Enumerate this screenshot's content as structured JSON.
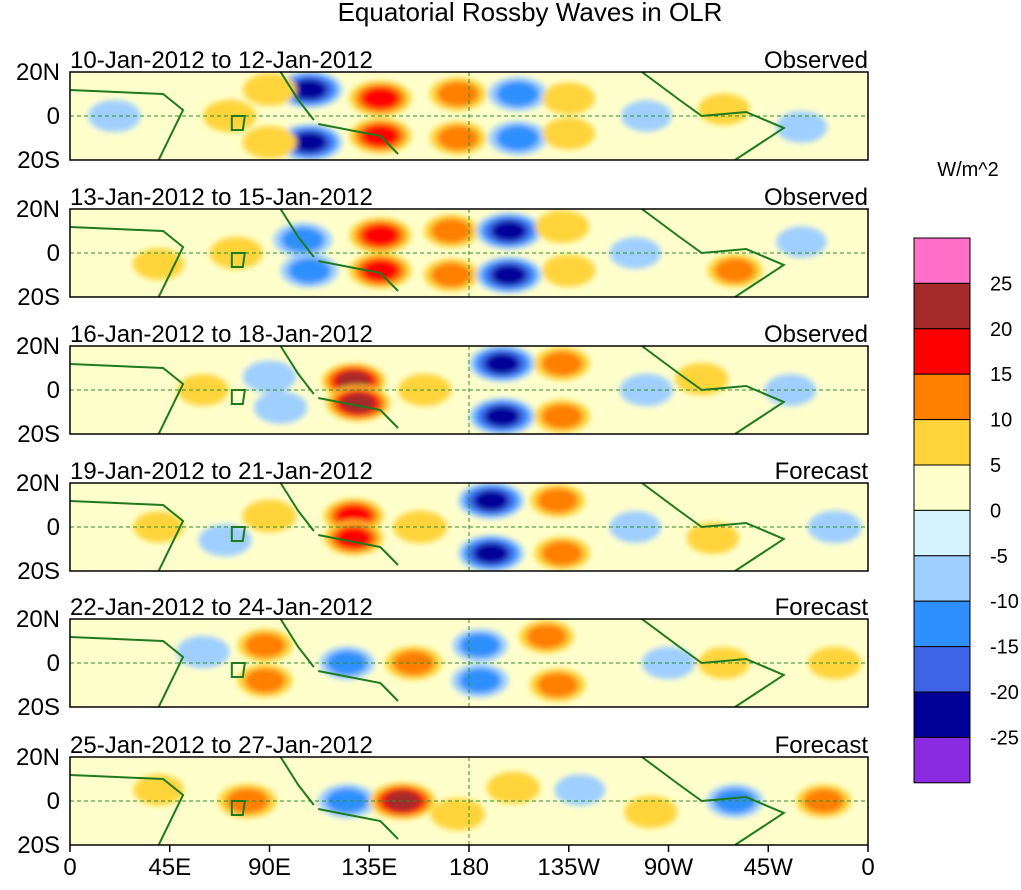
{
  "chart_data": {
    "type": "heatmap",
    "title": "Equatorial Rossby Waves in OLR",
    "variable": "OLR anomaly",
    "units": "W/m^2",
    "x_ticks": [
      "0",
      "45E",
      "90E",
      "135E",
      "180",
      "135W",
      "90W",
      "45W",
      "0"
    ],
    "y_ticks": [
      "20N",
      "0",
      "20S"
    ],
    "xlim": [
      0,
      360
    ],
    "ylim": [
      -20,
      20
    ],
    "colorbar": {
      "levels": [
        25,
        20,
        15,
        10,
        5,
        0,
        -5,
        -10,
        -15,
        -20,
        -25
      ],
      "colors": [
        "#ff6ec7",
        "#a52a2a",
        "#ff0000",
        "#ff7f00",
        "#ffd43b",
        "#ffffcc",
        "#d6f4ff",
        "#9fcfff",
        "#2f8fff",
        "#3f63e6",
        "#000099",
        "#8a2be2"
      ]
    },
    "panels": [
      {
        "dates": "10-Jan-2012 to 12-Jan-2012",
        "status": "Observed",
        "features": [
          {
            "lon": 108,
            "lat": 12,
            "value": -22
          },
          {
            "lon": 108,
            "lat": -12,
            "value": -22
          },
          {
            "lon": 140,
            "lat": 8,
            "value": 18
          },
          {
            "lon": 140,
            "lat": -9,
            "value": 18
          },
          {
            "lon": 72,
            "lat": 0,
            "value": 8
          },
          {
            "lon": 90,
            "lat": 12,
            "value": 8
          },
          {
            "lon": 90,
            "lat": -12,
            "value": 9
          },
          {
            "lon": 20,
            "lat": 0,
            "value": -7
          },
          {
            "lon": 175,
            "lat": 10,
            "value": 12
          },
          {
            "lon": 175,
            "lat": -10,
            "value": 11
          },
          {
            "lon": 202,
            "lat": 10,
            "value": -14
          },
          {
            "lon": 202,
            "lat": -10,
            "value": -14
          },
          {
            "lon": 225,
            "lat": 8,
            "value": 7
          },
          {
            "lon": 225,
            "lat": -8,
            "value": 7
          },
          {
            "lon": 260,
            "lat": 0,
            "value": -5
          },
          {
            "lon": 295,
            "lat": 3,
            "value": 6
          },
          {
            "lon": 330,
            "lat": -5,
            "value": -6
          }
        ]
      },
      {
        "dates": "13-Jan-2012 to 15-Jan-2012",
        "status": "Observed",
        "features": [
          {
            "lon": 105,
            "lat": 6,
            "value": -14
          },
          {
            "lon": 108,
            "lat": -8,
            "value": -13
          },
          {
            "lon": 140,
            "lat": 8,
            "value": 18
          },
          {
            "lon": 140,
            "lat": -8,
            "value": 18
          },
          {
            "lon": 75,
            "lat": 0,
            "value": 8
          },
          {
            "lon": 40,
            "lat": -5,
            "value": 6
          },
          {
            "lon": 172,
            "lat": 10,
            "value": 10
          },
          {
            "lon": 172,
            "lat": -10,
            "value": 10
          },
          {
            "lon": 198,
            "lat": 10,
            "value": -22
          },
          {
            "lon": 198,
            "lat": -10,
            "value": -22
          },
          {
            "lon": 222,
            "lat": 12,
            "value": 9
          },
          {
            "lon": 225,
            "lat": -8,
            "value": 8
          },
          {
            "lon": 255,
            "lat": 0,
            "value": -6
          },
          {
            "lon": 300,
            "lat": -8,
            "value": 10
          },
          {
            "lon": 330,
            "lat": 5,
            "value": -5
          }
        ]
      },
      {
        "dates": "16-Jan-2012 to 18-Jan-2012",
        "status": "Observed",
        "features": [
          {
            "lon": 128,
            "lat": 4,
            "value": 20
          },
          {
            "lon": 130,
            "lat": -6,
            "value": 20
          },
          {
            "lon": 90,
            "lat": 6,
            "value": -8
          },
          {
            "lon": 95,
            "lat": -8,
            "value": -8
          },
          {
            "lon": 60,
            "lat": 0,
            "value": 6
          },
          {
            "lon": 160,
            "lat": 0,
            "value": 8
          },
          {
            "lon": 195,
            "lat": 12,
            "value": -22
          },
          {
            "lon": 195,
            "lat": -12,
            "value": -22
          },
          {
            "lon": 222,
            "lat": 12,
            "value": 11
          },
          {
            "lon": 222,
            "lat": -12,
            "value": 11
          },
          {
            "lon": 260,
            "lat": 0,
            "value": -8
          },
          {
            "lon": 285,
            "lat": 5,
            "value": 8
          },
          {
            "lon": 325,
            "lat": 0,
            "value": -6
          }
        ]
      },
      {
        "dates": "19-Jan-2012 to 21-Jan-2012",
        "status": "Forecast",
        "features": [
          {
            "lon": 128,
            "lat": 5,
            "value": 16
          },
          {
            "lon": 128,
            "lat": -5,
            "value": 15
          },
          {
            "lon": 90,
            "lat": 5,
            "value": 9
          },
          {
            "lon": 70,
            "lat": -6,
            "value": -8
          },
          {
            "lon": 40,
            "lat": 0,
            "value": 5
          },
          {
            "lon": 158,
            "lat": 0,
            "value": 9
          },
          {
            "lon": 190,
            "lat": 12,
            "value": -22
          },
          {
            "lon": 190,
            "lat": -12,
            "value": -22
          },
          {
            "lon": 220,
            "lat": 12,
            "value": 10
          },
          {
            "lon": 222,
            "lat": -12,
            "value": 11
          },
          {
            "lon": 255,
            "lat": 0,
            "value": -6
          },
          {
            "lon": 290,
            "lat": -5,
            "value": 7
          },
          {
            "lon": 345,
            "lat": 0,
            "value": -9
          }
        ]
      },
      {
        "dates": "22-Jan-2012 to 24-Jan-2012",
        "status": "Forecast",
        "features": [
          {
            "lon": 88,
            "lat": 8,
            "value": 10
          },
          {
            "lon": 88,
            "lat": -8,
            "value": 10
          },
          {
            "lon": 60,
            "lat": 5,
            "value": -8
          },
          {
            "lon": 125,
            "lat": 0,
            "value": -10
          },
          {
            "lon": 155,
            "lat": 0,
            "value": 12
          },
          {
            "lon": 185,
            "lat": 8,
            "value": -10
          },
          {
            "lon": 185,
            "lat": -8,
            "value": -12
          },
          {
            "lon": 215,
            "lat": 12,
            "value": 10
          },
          {
            "lon": 220,
            "lat": -10,
            "value": 11
          },
          {
            "lon": 270,
            "lat": 0,
            "value": -8
          },
          {
            "lon": 295,
            "lat": 0,
            "value": 6
          },
          {
            "lon": 345,
            "lat": 0,
            "value": 8
          }
        ]
      },
      {
        "dates": "25-Jan-2012 to 27-Jan-2012",
        "status": "Forecast",
        "features": [
          {
            "lon": 80,
            "lat": 0,
            "value": 14
          },
          {
            "lon": 125,
            "lat": 0,
            "value": -13
          },
          {
            "lon": 150,
            "lat": 0,
            "value": 22
          },
          {
            "lon": 175,
            "lat": -6,
            "value": 9
          },
          {
            "lon": 200,
            "lat": 6,
            "value": 8
          },
          {
            "lon": 230,
            "lat": 5,
            "value": -5
          },
          {
            "lon": 262,
            "lat": -5,
            "value": 8
          },
          {
            "lon": 300,
            "lat": 0,
            "value": -12
          },
          {
            "lon": 340,
            "lat": 0,
            "value": 10
          },
          {
            "lon": 40,
            "lat": 5,
            "value": 5
          }
        ]
      }
    ]
  }
}
